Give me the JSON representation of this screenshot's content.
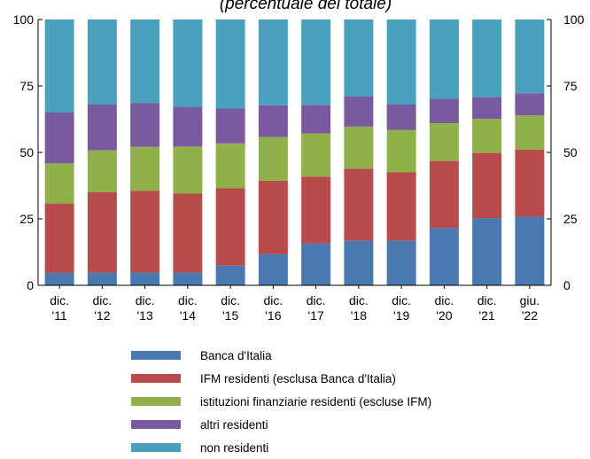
{
  "chart_data": {
    "type": "bar",
    "stacked": true,
    "title": "",
    "subtitle": "(percentuale del totale)",
    "categories": [
      [
        "dic.",
        "'11"
      ],
      [
        "dic.",
        "'12"
      ],
      [
        "dic.",
        "'13"
      ],
      [
        "dic.",
        "'14"
      ],
      [
        "dic.",
        "'15"
      ],
      [
        "dic.",
        "'16"
      ],
      [
        "dic.",
        "'17"
      ],
      [
        "dic.",
        "'18"
      ],
      [
        "dic.",
        "'19"
      ],
      [
        "dic.",
        "'20"
      ],
      [
        "dic.",
        "'21"
      ],
      [
        "giu.",
        "'22"
      ]
    ],
    "ylim": [
      0,
      100
    ],
    "yticks": [
      0,
      25,
      50,
      75,
      100
    ],
    "axes": "left-and-right",
    "grid": false,
    "legend_position": "bottom",
    "series": [
      {
        "name": "Banca d'Italia",
        "color": "#4a78b0",
        "values": [
          4.7,
          4.8,
          4.8,
          4.8,
          7.4,
          11.7,
          15.8,
          16.8,
          16.8,
          21.6,
          25.3,
          25.8
        ]
      },
      {
        "name": "IFM residenti (esclusa Banca d'Italia)",
        "color": "#b84b4b",
        "values": [
          26.1,
          30.2,
          30.8,
          29.7,
          29.1,
          27.7,
          25.1,
          27.1,
          25.7,
          25.2,
          24.5,
          25.3
        ]
      },
      {
        "name": "istituzioni finanziarie residenti (escluse IFM)",
        "color": "#8fb04a",
        "values": [
          15.1,
          15.8,
          16.5,
          17.7,
          16.9,
          16.4,
          16.2,
          15.8,
          16.0,
          14.2,
          12.8,
          12.8
        ]
      },
      {
        "name": "altri residenti",
        "color": "#7a5a9e",
        "values": [
          19.1,
          17.2,
          16.4,
          14.8,
          13.1,
          11.9,
          10.8,
          11.3,
          9.5,
          9.2,
          8.2,
          8.3
        ]
      },
      {
        "name": "non residenti",
        "color": "#4aa0bd",
        "values": [
          35.0,
          32.0,
          31.5,
          33.0,
          33.5,
          32.3,
          32.1,
          29.0,
          32.0,
          29.8,
          29.2,
          27.8
        ]
      }
    ]
  }
}
